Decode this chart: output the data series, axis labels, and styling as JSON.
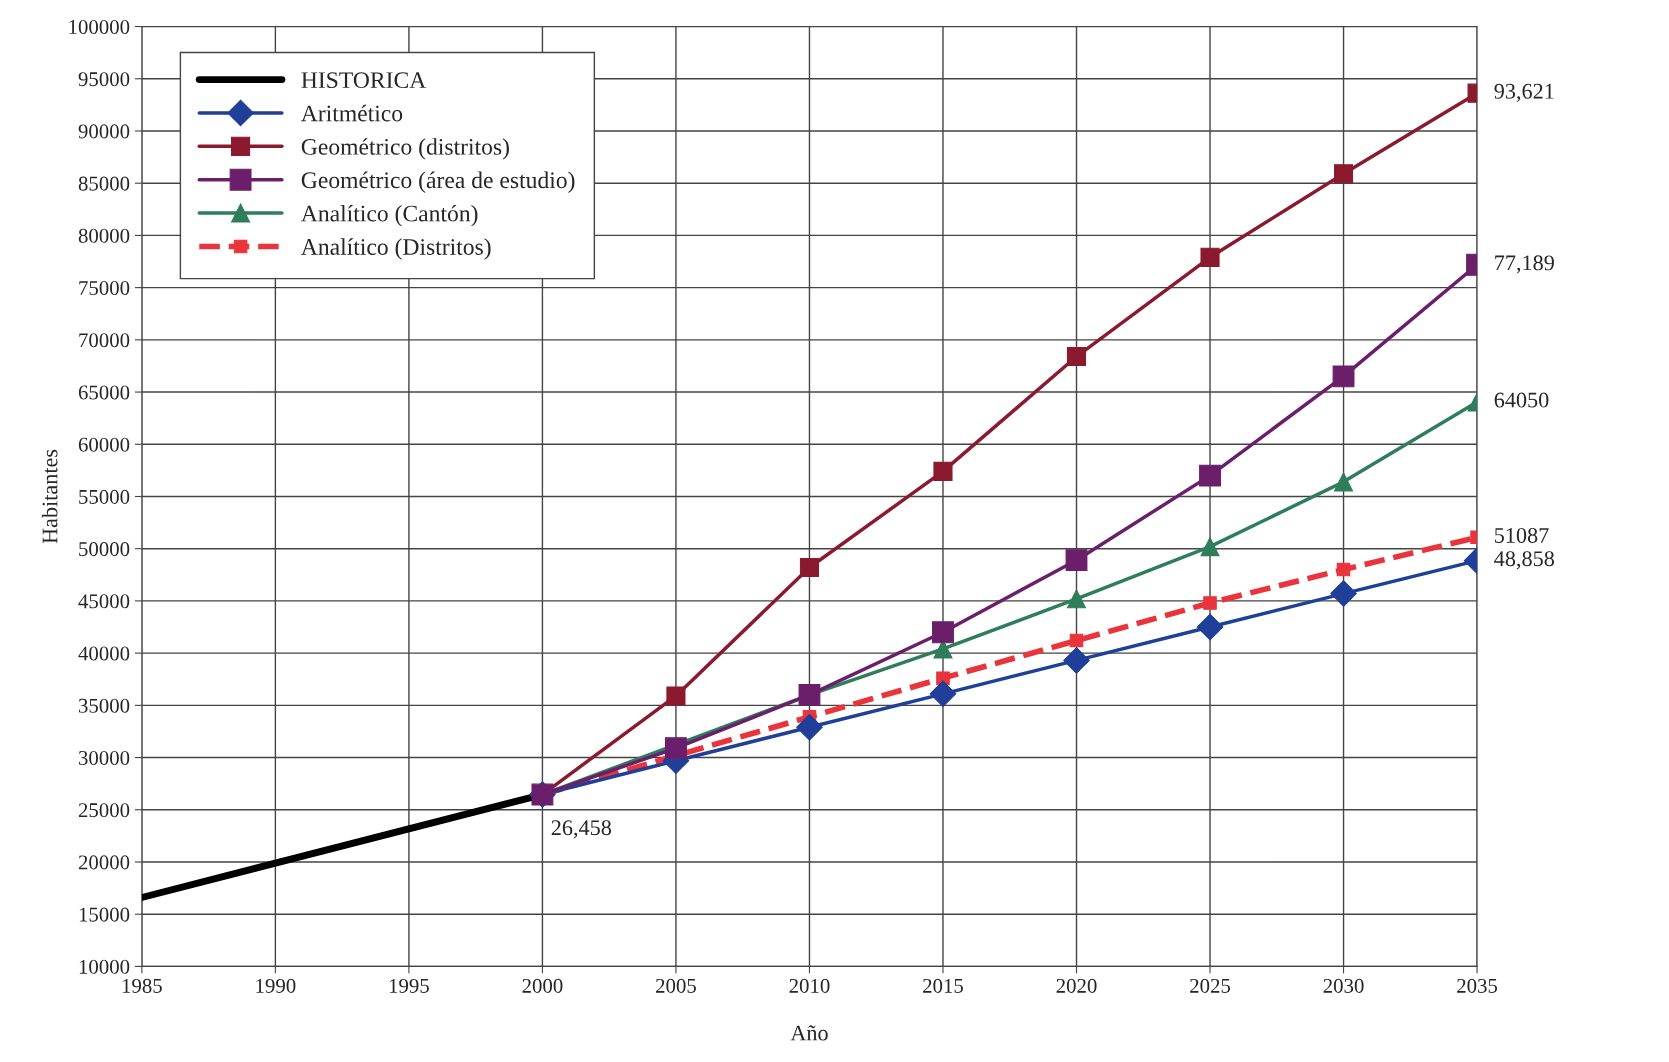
{
  "chart_data": {
    "type": "line",
    "xlabel": "Año",
    "ylabel": "Habitantes",
    "x": [
      2000,
      2005,
      2010,
      2015,
      2020,
      2025,
      2030,
      2035
    ],
    "xlim": [
      1985,
      2035
    ],
    "xticks": [
      1985,
      1990,
      1995,
      2000,
      2005,
      2010,
      2015,
      2020,
      2025,
      2030,
      2035
    ],
    "ylim": [
      10000,
      100000
    ],
    "yticks": [
      10000,
      15000,
      20000,
      25000,
      30000,
      35000,
      40000,
      45000,
      50000,
      55000,
      60000,
      65000,
      70000,
      75000,
      80000,
      85000,
      90000,
      95000,
      100000
    ],
    "grid": true,
    "legend": "top left",
    "series": [
      {
        "name": "HISTORICA",
        "color": "#000000",
        "x": [
          1985,
          2000
        ],
        "values": [
          16600,
          26458
        ],
        "marker": "none",
        "line_style": "solid"
      },
      {
        "name": "Aritmético",
        "color": "#1f3f99",
        "values": [
          26458,
          29700,
          32900,
          36100,
          39300,
          42500,
          45700,
          48858
        ],
        "marker": "diamond",
        "line_style": "solid",
        "value_labels": [
          "26,458",
          null,
          null,
          null,
          null,
          null,
          null,
          "48,858"
        ]
      },
      {
        "name": "Geométrico (distritos)",
        "color": "#8b1a2e",
        "values": [
          26458,
          35900,
          48200,
          57400,
          68400,
          77900,
          85900,
          93621
        ],
        "marker": "square",
        "line_style": "solid",
        "value_labels": [
          null,
          null,
          null,
          null,
          null,
          null,
          null,
          "93,621"
        ]
      },
      {
        "name": "Geométrico (área de estudio)",
        "color": "#6b1f6b",
        "values": [
          26458,
          30900,
          36000,
          42000,
          48900,
          57000,
          66500,
          77189
        ],
        "marker": "square",
        "line_style": "solid",
        "value_labels": [
          null,
          null,
          null,
          null,
          null,
          null,
          null,
          "77,189"
        ]
      },
      {
        "name": "Analítico (Cantón)",
        "color": "#2e7d5b",
        "x": [
          2000,
          2010,
          2015,
          2020,
          2025,
          2030,
          2035
        ],
        "values": [
          26458,
          36000,
          40400,
          45200,
          50200,
          56400,
          64050
        ],
        "marker": "triangle",
        "line_style": "solid",
        "value_labels": [
          null,
          null,
          null,
          null,
          null,
          null,
          "64050"
        ]
      },
      {
        "name": "Analítico (Distritos)",
        "color": "#e8343a",
        "x": [
          2000,
          2010,
          2015,
          2020,
          2025,
          2030,
          2035
        ],
        "values": [
          26458,
          33900,
          37600,
          41200,
          44800,
          48000,
          51087
        ],
        "marker": "square",
        "line_style": "dashed",
        "value_labels": [
          null,
          null,
          null,
          null,
          null,
          null,
          "51087"
        ]
      }
    ]
  }
}
